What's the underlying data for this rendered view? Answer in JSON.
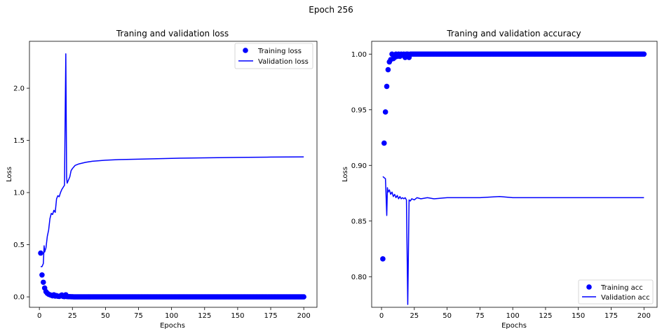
{
  "figure": {
    "suptitle": "Epoch 256"
  },
  "chart_data": [
    {
      "type": "line",
      "title": "Traning and validation loss",
      "xlabel": "Epochs",
      "ylabel": "Loss",
      "xlim": [
        -7.5,
        210
      ],
      "ylim": [
        -0.1,
        2.45
      ],
      "xticks": [
        "0",
        "25",
        "50",
        "75",
        "100",
        "125",
        "150",
        "175",
        "200"
      ],
      "xtick_values": [
        0,
        25,
        50,
        75,
        100,
        125,
        150,
        175,
        200
      ],
      "yticks": [
        "0.0",
        "0.5",
        "1.0",
        "1.5",
        "2.0"
      ],
      "ytick_values": [
        0,
        0.5,
        1.0,
        1.5,
        2.0
      ],
      "legend_loc": "upper right",
      "grid": false,
      "series": [
        {
          "name": "Training loss",
          "kind": "scatter",
          "color": "#0000ff",
          "points": [
            [
              1,
              0.42
            ],
            [
              2,
              0.21
            ],
            [
              3,
              0.14
            ],
            [
              4,
              0.085
            ],
            [
              5,
              0.05
            ],
            [
              6,
              0.035
            ],
            [
              7,
              0.025
            ],
            [
              8,
              0.02
            ],
            [
              9,
              0.015
            ],
            [
              10,
              0.01
            ],
            [
              11,
              0.02
            ],
            [
              12,
              0.008
            ],
            [
              13,
              0.012
            ],
            [
              14,
              0.006
            ],
            [
              15,
              0.004
            ],
            [
              16,
              0.01
            ],
            [
              17,
              0.018
            ],
            [
              18,
              0.004
            ],
            [
              19,
              0.003
            ],
            [
              20,
              0.02
            ],
            [
              21,
              0.003
            ],
            [
              22,
              0.002
            ],
            [
              23,
              0.002
            ],
            [
              24,
              0.001
            ],
            [
              25,
              0.001
            ]
          ],
          "constant_after": {
            "from": 26,
            "to": 200,
            "value": 0.0
          }
        },
        {
          "name": "Validation loss",
          "kind": "line",
          "color": "#0000ff",
          "points": [
            [
              1,
              0.29
            ],
            [
              2,
              0.29
            ],
            [
              3,
              0.32
            ],
            [
              3.6,
              0.49
            ],
            [
              4,
              0.43
            ],
            [
              5,
              0.47
            ],
            [
              6,
              0.58
            ],
            [
              7,
              0.64
            ],
            [
              8,
              0.75
            ],
            [
              9,
              0.8
            ],
            [
              10,
              0.79
            ],
            [
              11,
              0.83
            ],
            [
              12,
              0.81
            ],
            [
              13,
              0.94
            ],
            [
              14,
              0.97
            ],
            [
              15,
              0.96
            ],
            [
              16,
              1.0
            ],
            [
              17,
              1.03
            ],
            [
              18,
              1.05
            ],
            [
              19,
              1.07
            ],
            [
              20,
              2.33
            ],
            [
              20.6,
              1.15
            ],
            [
              21,
              1.09
            ],
            [
              22,
              1.12
            ],
            [
              23,
              1.15
            ],
            [
              24,
              1.21
            ],
            [
              25,
              1.23
            ],
            [
              27,
              1.26
            ],
            [
              30,
              1.275
            ],
            [
              35,
              1.29
            ],
            [
              40,
              1.3
            ],
            [
              50,
              1.31
            ],
            [
              60,
              1.316
            ],
            [
              75,
              1.32
            ],
            [
              100,
              1.328
            ],
            [
              125,
              1.333
            ],
            [
              150,
              1.337
            ],
            [
              175,
              1.34
            ],
            [
              200,
              1.342
            ]
          ]
        }
      ]
    },
    {
      "type": "line",
      "title": "Traning and validation accuracy",
      "xlabel": "Epochs",
      "ylabel": "Loss",
      "xlim": [
        -7.5,
        210
      ],
      "ylim": [
        0.7725,
        1.0115
      ],
      "xticks": [
        "0",
        "25",
        "50",
        "75",
        "100",
        "125",
        "150",
        "175",
        "200"
      ],
      "xtick_values": [
        0,
        25,
        50,
        75,
        100,
        125,
        150,
        175,
        200
      ],
      "yticks": [
        "0.80",
        "0.85",
        "0.90",
        "0.95",
        "1.00"
      ],
      "ytick_values": [
        0.8,
        0.85,
        0.9,
        0.95,
        1.0
      ],
      "legend_loc": "lower right",
      "grid": false,
      "series": [
        {
          "name": "Training acc",
          "kind": "scatter",
          "color": "#0000ff",
          "points": [
            [
              1,
              0.816
            ],
            [
              2,
              0.92
            ],
            [
              3,
              0.948
            ],
            [
              4,
              0.971
            ],
            [
              5,
              0.986
            ],
            [
              6,
              0.993
            ],
            [
              7,
              0.995
            ],
            [
              8,
              1.0
            ],
            [
              9,
              0.996
            ],
            [
              10,
              0.997
            ],
            [
              11,
              1.0
            ],
            [
              12,
              0.998
            ],
            [
              13,
              1.0
            ],
            [
              14,
              0.998
            ],
            [
              15,
              1.0
            ],
            [
              16,
              0.999
            ],
            [
              17,
              1.0
            ],
            [
              18,
              0.997
            ],
            [
              19,
              1.0
            ],
            [
              20,
              1.0
            ],
            [
              21,
              0.997
            ],
            [
              22,
              1.0
            ],
            [
              23,
              1.0
            ],
            [
              24,
              1.0
            ],
            [
              25,
              1.0
            ]
          ],
          "constant_after": {
            "from": 26,
            "to": 200,
            "value": 1.0
          }
        },
        {
          "name": "Validation acc",
          "kind": "line",
          "color": "#0000ff",
          "points": [
            [
              1,
              0.89
            ],
            [
              2,
              0.889
            ],
            [
              3,
              0.888
            ],
            [
              3.5,
              0.872
            ],
            [
              4,
              0.855
            ],
            [
              4.5,
              0.88
            ],
            [
              5,
              0.876
            ],
            [
              6,
              0.878
            ],
            [
              7,
              0.874
            ],
            [
              8,
              0.876
            ],
            [
              9,
              0.872
            ],
            [
              10,
              0.874
            ],
            [
              11,
              0.871
            ],
            [
              12,
              0.873
            ],
            [
              13,
              0.87
            ],
            [
              14,
              0.872
            ],
            [
              15,
              0.87
            ],
            [
              16,
              0.871
            ],
            [
              17,
              0.87
            ],
            [
              18,
              0.871
            ],
            [
              19,
              0.869
            ],
            [
              20,
              0.775
            ],
            [
              21,
              0.869
            ],
            [
              22,
              0.868
            ],
            [
              23,
              0.87
            ],
            [
              25,
              0.869
            ],
            [
              27,
              0.871
            ],
            [
              30,
              0.87
            ],
            [
              35,
              0.871
            ],
            [
              40,
              0.87
            ],
            [
              50,
              0.871
            ],
            [
              60,
              0.871
            ],
            [
              75,
              0.871
            ],
            [
              90,
              0.872
            ],
            [
              100,
              0.871
            ],
            [
              125,
              0.871
            ],
            [
              150,
              0.871
            ],
            [
              175,
              0.871
            ],
            [
              200,
              0.871
            ]
          ]
        }
      ]
    }
  ]
}
